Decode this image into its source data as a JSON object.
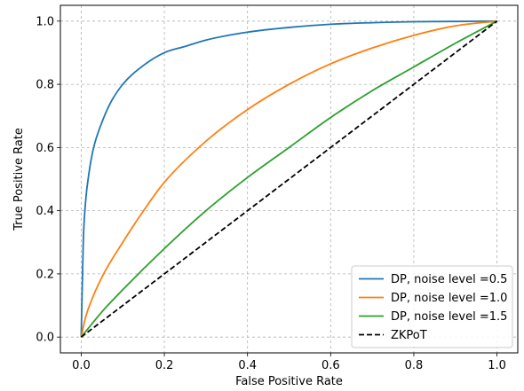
{
  "chart_data": {
    "type": "line",
    "title": "",
    "xlabel": "False Positive Rate",
    "ylabel": "True Positive Rate",
    "xlim": [
      -0.05,
      1.05
    ],
    "ylim": [
      -0.05,
      1.05
    ],
    "xticks": [
      "0.0",
      "0.2",
      "0.4",
      "0.6",
      "0.8",
      "1.0"
    ],
    "yticks": [
      "0.0",
      "0.2",
      "0.4",
      "0.6",
      "0.8",
      "1.0"
    ],
    "grid": true,
    "grid_style": "dashed",
    "legend_position": "lower-right",
    "series": [
      {
        "name": "DP, noise level =0.5",
        "color": "#1f77b4",
        "line_style": "solid",
        "x": [
          0.0,
          0.005,
          0.01,
          0.02,
          0.03,
          0.05,
          0.07,
          0.1,
          0.15,
          0.2,
          0.25,
          0.3,
          0.4,
          0.5,
          0.6,
          0.7,
          0.8,
          0.9,
          1.0
        ],
        "y": [
          0.0,
          0.3,
          0.42,
          0.53,
          0.6,
          0.68,
          0.74,
          0.8,
          0.86,
          0.9,
          0.92,
          0.94,
          0.965,
          0.98,
          0.99,
          0.995,
          0.998,
          0.999,
          1.0
        ]
      },
      {
        "name": "DP, noise level =1.0",
        "color": "#ff7f0e",
        "line_style": "solid",
        "x": [
          0.0,
          0.01,
          0.02,
          0.05,
          0.1,
          0.15,
          0.2,
          0.3,
          0.4,
          0.5,
          0.6,
          0.7,
          0.8,
          0.9,
          1.0
        ],
        "y": [
          0.0,
          0.06,
          0.1,
          0.19,
          0.3,
          0.4,
          0.49,
          0.62,
          0.72,
          0.8,
          0.865,
          0.915,
          0.955,
          0.985,
          1.0
        ]
      },
      {
        "name": "DP, noise level =1.5",
        "color": "#2ca02c",
        "line_style": "solid",
        "x": [
          0.0,
          0.05,
          0.1,
          0.2,
          0.3,
          0.4,
          0.5,
          0.6,
          0.7,
          0.8,
          0.9,
          1.0
        ],
        "y": [
          0.0,
          0.08,
          0.15,
          0.28,
          0.4,
          0.505,
          0.6,
          0.695,
          0.78,
          0.855,
          0.93,
          1.0
        ]
      },
      {
        "name": "ZKPoT",
        "color": "#000000",
        "line_style": "dashed",
        "x": [
          0.0,
          1.0
        ],
        "y": [
          0.0,
          1.0
        ]
      }
    ]
  }
}
